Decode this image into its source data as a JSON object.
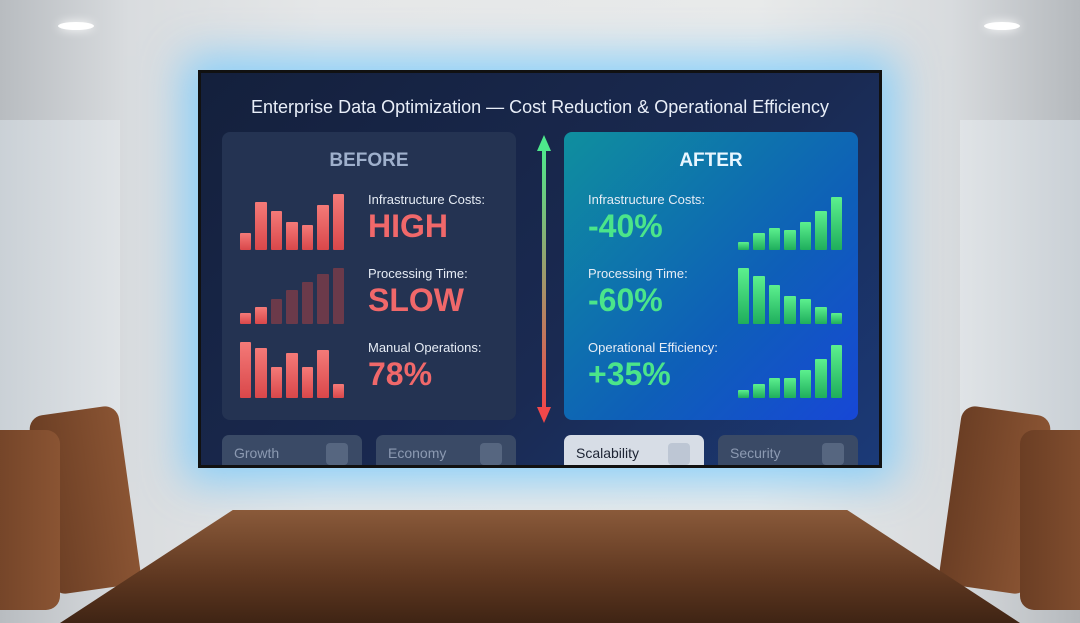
{
  "title": "Enterprise Data Optimization — Cost Reduction & Operational Efficiency",
  "before": {
    "heading": "BEFORE",
    "color": "#f0686a",
    "metrics": [
      {
        "label": "Infrastructure Costs:",
        "value": "HIGH",
        "bars": [
          0.3,
          0.85,
          0.7,
          0.5,
          0.45,
          0.8,
          1.0
        ],
        "bars_lit": [
          1,
          1,
          1,
          1,
          1,
          1,
          1
        ]
      },
      {
        "label": "Processing Time:",
        "value": "SLOW",
        "bars": [
          0.2,
          0.3,
          0.45,
          0.6,
          0.75,
          0.9,
          1.0
        ],
        "bars_lit": [
          1,
          1,
          0,
          0,
          0,
          0,
          0
        ]
      },
      {
        "label": "Manual Operations:",
        "value": "78%",
        "bars": [
          1.0,
          0.9,
          0.55,
          0.8,
          0.55,
          0.85,
          0.25
        ],
        "bars_lit": [
          1,
          1,
          1,
          1,
          1,
          1,
          1
        ]
      }
    ]
  },
  "after": {
    "heading": "AFTER",
    "color": "#4be58a",
    "metrics": [
      {
        "label": "Infrastructure Costs:",
        "value": "-40%",
        "bars": [
          0.15,
          0.3,
          0.4,
          0.35,
          0.5,
          0.7,
          0.95
        ],
        "trend": "up"
      },
      {
        "label": "Processing Time:",
        "value": "-60%",
        "bars": [
          1.0,
          0.85,
          0.7,
          0.5,
          0.45,
          0.3,
          0.2
        ]
      },
      {
        "label": "Operational Efficiency:",
        "value": "+35%",
        "bars": [
          0.15,
          0.25,
          0.35,
          0.35,
          0.5,
          0.7,
          0.95
        ],
        "trend": "up"
      }
    ]
  },
  "tabs": [
    {
      "label": "Growth",
      "icon": "bar-chart-icon"
    },
    {
      "label": "Economy",
      "icon": "globe-icon"
    },
    {
      "label": "Scalability",
      "icon": "expand-icon",
      "active": true
    },
    {
      "label": "Security",
      "icon": "lock-icon"
    }
  ]
}
